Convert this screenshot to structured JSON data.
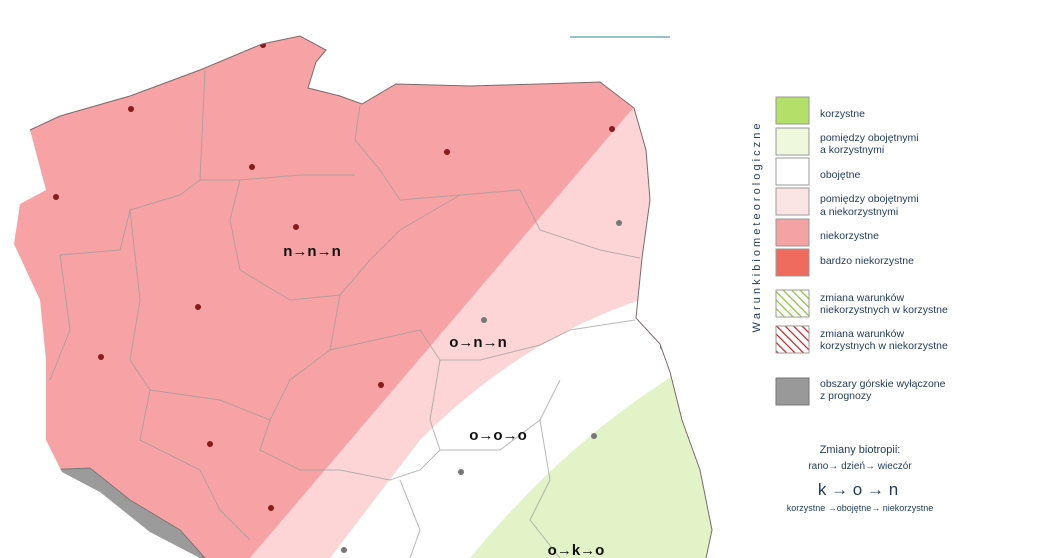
{
  "map": {
    "region_labels": [
      "n→n→n",
      "o→n→n",
      "o→o→o",
      "o→k→o"
    ],
    "legend": {
      "title": "W a r u n k i     b i o m e t e o r o l o g i c z n e",
      "items": [
        {
          "lines": [
            "korzystne"
          ]
        },
        {
          "lines": [
            "pomiędzy obojętnymi",
            "a korzystnymi"
          ]
        },
        {
          "lines": [
            "obojętne"
          ]
        },
        {
          "lines": [
            "pomiędzy obojętnymi",
            "a niekorzystnymi"
          ]
        },
        {
          "lines": [
            "niekorzystne"
          ]
        },
        {
          "lines": [
            "bardzo niekorzystne"
          ]
        },
        {
          "lines": [
            "zmiana warunków",
            "niekorzystnych w korzystne"
          ]
        },
        {
          "lines": [
            "zmiana warunków",
            "korzystnych w niekorzystne"
          ]
        },
        {
          "lines": [
            "obszary górskie wyłączone",
            "z prognozy"
          ]
        }
      ]
    },
    "explanation": {
      "title": "Zmiany biotropii:",
      "sequence": "rano→ dzień→ wieczór",
      "example": "k → o → n",
      "example_meaning": "korzystne →obojętne→ niekorzystne"
    }
  }
}
